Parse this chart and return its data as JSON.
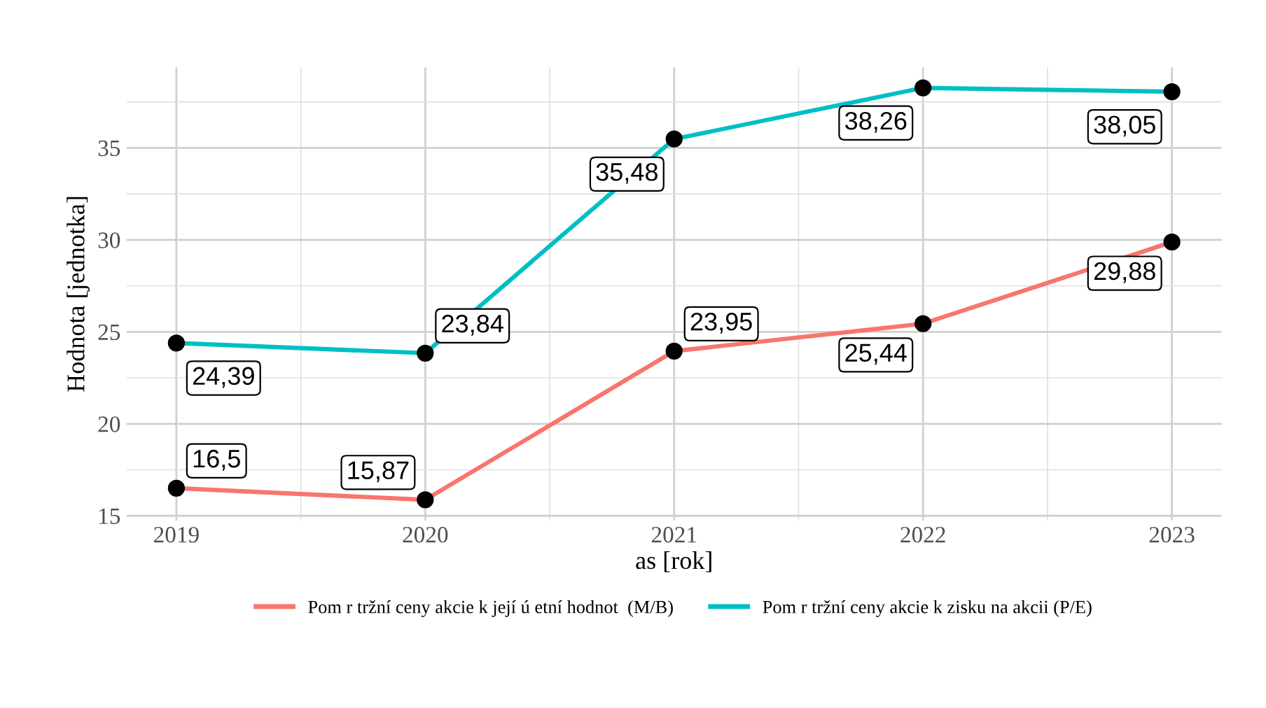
{
  "chart_data": {
    "type": "line",
    "xlabel": "as [rok]",
    "ylabel": "Hodnota [jednotka]",
    "x": [
      2019,
      2020,
      2021,
      2022,
      2023
    ],
    "xlim": [
      2018.8,
      2023.2
    ],
    "xticks": [
      2019,
      2020,
      2021,
      2022,
      2023
    ],
    "ylim": [
      14.75,
      39.38
    ],
    "yticks": [
      15,
      20,
      25,
      30,
      35
    ],
    "grid": true,
    "legend": "bottom",
    "marker": "circle",
    "line_style": "solid",
    "series": [
      {
        "name": "Pom r tržní ceny akcie k její ú etní hodnot  (M/B)",
        "color": "#f8766d",
        "values": [
          16.5,
          15.87,
          23.95,
          25.44,
          29.88
        ],
        "value_labels": [
          "16,5",
          "15,87",
          "23,95",
          "25,44",
          "29,88"
        ]
      },
      {
        "name": "Pom r tržní ceny akcie k zisku na akcii (P/E)",
        "color": "#00bfc4",
        "values": [
          24.39,
          23.84,
          35.48,
          38.26,
          38.05
        ],
        "value_labels": [
          "24,39",
          "23,84",
          "35,48",
          "38,26",
          "38,05"
        ]
      }
    ]
  }
}
